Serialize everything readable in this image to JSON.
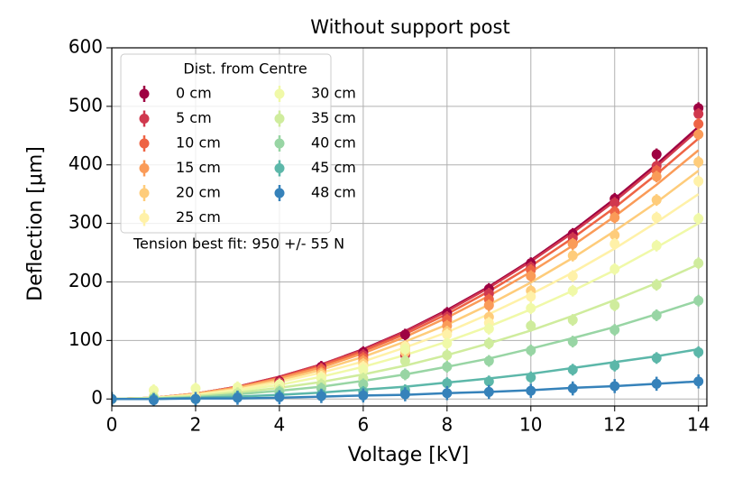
{
  "chart_data": {
    "type": "errorbar-scatter-fit",
    "title": "Without support post",
    "x_label": "Voltage [kV]",
    "y_label": "Deflection [μm]",
    "annotation": "Tension best fit: 950 +/- 55 N",
    "legend_title": "Dist. from Centre",
    "legend_position": "upper-left",
    "grid": true,
    "x": [
      0,
      1,
      2,
      3,
      4,
      5,
      6,
      7,
      8,
      9,
      10,
      11,
      12,
      13,
      14
    ],
    "xlim": [
      0,
      14.2
    ],
    "xticks": [
      0,
      2,
      4,
      6,
      8,
      10,
      12,
      14
    ],
    "ylim": [
      -12,
      600
    ],
    "yticks": [
      0,
      100,
      200,
      300,
      400,
      500,
      600
    ],
    "series": [
      {
        "name": "0 cm",
        "color": "#9e0142",
        "error": 10,
        "values": [
          0,
          3,
          5,
          10,
          30,
          55,
          80,
          110,
          147,
          188,
          232,
          282,
          342,
          418,
          497
        ],
        "fit": [
          0,
          2,
          9,
          21,
          38,
          59,
          85,
          116,
          152,
          192,
          237,
          287,
          342,
          401,
          465
        ]
      },
      {
        "name": "5 cm",
        "color": "#d0384e",
        "error": 10,
        "values": [
          0,
          2,
          3,
          8,
          28,
          52,
          75,
          75,
          140,
          180,
          225,
          275,
          335,
          398,
          487
        ],
        "fit": [
          0,
          2,
          9,
          21,
          38,
          59,
          84,
          115,
          150,
          190,
          235,
          284,
          338,
          397,
          460
        ]
      },
      {
        "name": "10 cm",
        "color": "#ee6445",
        "error": 10,
        "values": [
          0,
          1,
          2,
          5,
          25,
          50,
          70,
          90,
          135,
          170,
          220,
          265,
          320,
          390,
          470
        ],
        "fit": [
          0,
          2,
          9,
          20,
          36,
          57,
          82,
          111,
          145,
          184,
          227,
          275,
          327,
          384,
          445
        ]
      },
      {
        "name": "15 cm",
        "color": "#fa9b58",
        "error": 10,
        "values": [
          0,
          2,
          0,
          10,
          22,
          45,
          65,
          85,
          125,
          160,
          210,
          265,
          310,
          380,
          452
        ],
        "fit": [
          0,
          2,
          9,
          20,
          35,
          54,
          78,
          106,
          139,
          176,
          217,
          262,
          312,
          366,
          425
        ]
      },
      {
        "name": "20 cm",
        "color": "#fecc7b",
        "error": 10,
        "values": [
          0,
          2,
          0,
          8,
          20,
          42,
          60,
          80,
          115,
          140,
          185,
          245,
          280,
          340,
          405
        ],
        "fit": [
          0,
          2,
          8,
          18,
          32,
          50,
          72,
          98,
          127,
          161,
          199,
          241,
          287,
          336,
          390
        ]
      },
      {
        "name": "25 cm",
        "color": "#fff1a8",
        "error": 10,
        "values": [
          0,
          5,
          5,
          15,
          18,
          38,
          55,
          90,
          110,
          130,
          175,
          210,
          265,
          310,
          372
        ],
        "fit": [
          0,
          2,
          7,
          16,
          29,
          45,
          64,
          88,
          114,
          145,
          179,
          216,
          257,
          302,
          350
        ]
      },
      {
        "name": "30 cm",
        "color": "#f0f9a8",
        "error": 10,
        "values": [
          0,
          15,
          18,
          20,
          25,
          35,
          50,
          85,
          95,
          120,
          155,
          185,
          222,
          262,
          308
        ],
        "fit": [
          0,
          2,
          6,
          14,
          24,
          38,
          55,
          75,
          98,
          124,
          153,
          185,
          220,
          259,
          300
        ]
      },
      {
        "name": "35 cm",
        "color": "#cfec9d",
        "error": 10,
        "values": [
          0,
          3,
          0,
          10,
          15,
          25,
          35,
          65,
          75,
          95,
          125,
          135,
          160,
          195,
          232
        ],
        "fit": [
          0,
          1,
          5,
          11,
          19,
          29,
          42,
          57,
          75,
          95,
          117,
          142,
          169,
          198,
          230
        ]
      },
      {
        "name": "40 cm",
        "color": "#98d5a4",
        "error": 10,
        "values": [
          0,
          0,
          0,
          5,
          12,
          18,
          25,
          42,
          55,
          65,
          83,
          98,
          118,
          143,
          168
        ],
        "fit": [
          0,
          1,
          3,
          8,
          14,
          21,
          31,
          42,
          55,
          69,
          86,
          104,
          123,
          145,
          168
        ]
      },
      {
        "name": "45 cm",
        "color": "#5cb7a9",
        "error": 10,
        "values": [
          0,
          0,
          0,
          3,
          5,
          8,
          12,
          15,
          27,
          30,
          37,
          50,
          57,
          70,
          80
        ],
        "fit": [
          0,
          0,
          2,
          4,
          7,
          11,
          16,
          21,
          28,
          35,
          43,
          53,
          63,
          73,
          85
        ]
      },
      {
        "name": "48 cm",
        "color": "#3682ba",
        "error": 12,
        "values": [
          0,
          -2,
          0,
          2,
          3,
          5,
          6,
          8,
          10,
          12,
          14,
          18,
          22,
          26,
          30
        ],
        "fit": [
          0,
          0,
          1,
          1,
          2,
          4,
          6,
          7,
          10,
          12,
          15,
          19,
          22,
          26,
          30
        ]
      }
    ]
  }
}
